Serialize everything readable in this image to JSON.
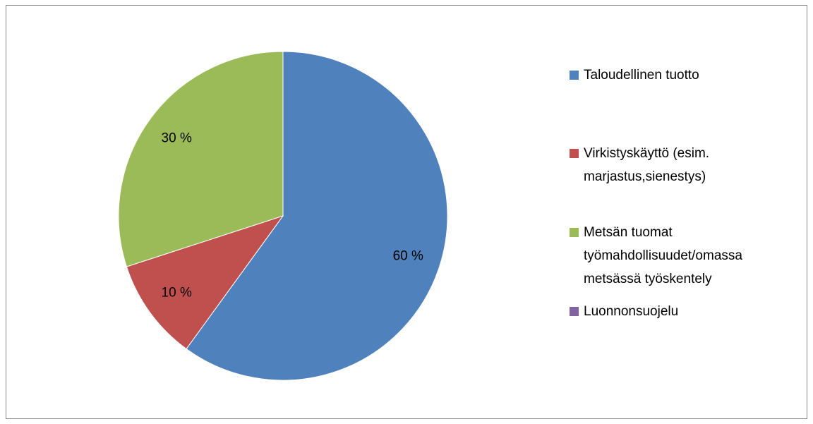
{
  "chart_data": {
    "type": "pie",
    "categories": [
      "Taloudellinen tuotto",
      "Virkistyskäyttö (esim. marjastus,sienestys)",
      "Metsän tuomat työmahdollisuudet/omassa metsässä työskentely",
      "Luonnonsuojelu"
    ],
    "values": [
      60,
      10,
      30,
      0
    ],
    "value_labels": [
      "60 %",
      "10 %",
      "30 %",
      null
    ],
    "colors": [
      "#4f81bd",
      "#c0504d",
      "#9bbb59",
      "#8064a2"
    ],
    "legend": "right"
  }
}
